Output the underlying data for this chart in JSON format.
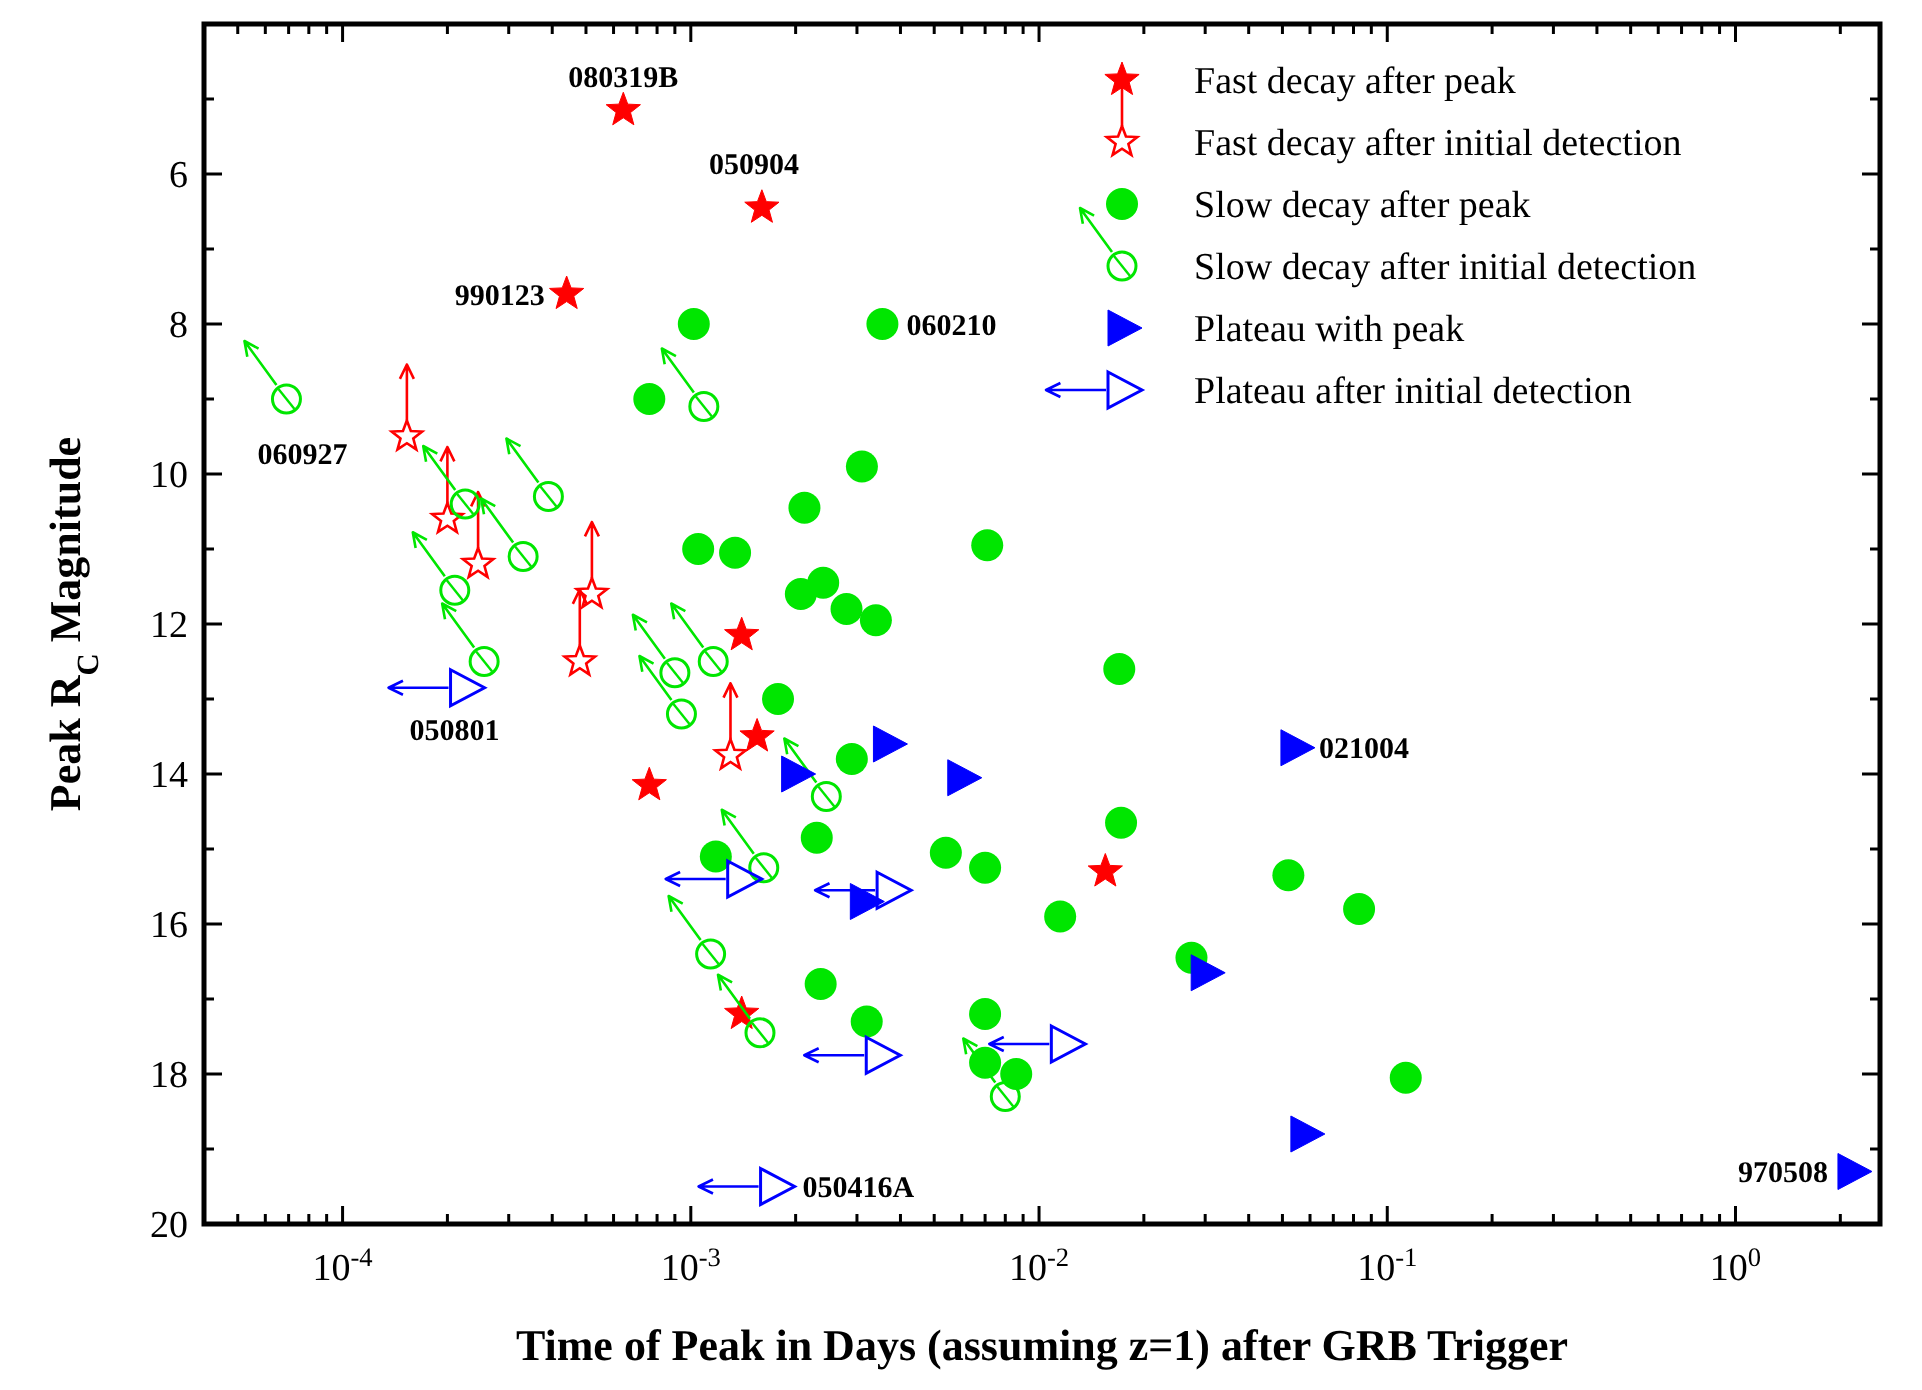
{
  "chart_data": {
    "type": "scatter",
    "xlabel": "Time of Peak in Days (assuming z=1) after GRB Trigger",
    "ylabel": "Peak R$_{C}$ Magnitude",
    "log": "x",
    "legend": "top right",
    "xlim": [
      4e-05,
      2.6
    ],
    "ylim": [
      20,
      4
    ],
    "xticks": [
      {
        "value": 0.0001,
        "label": "10$^{-4}$"
      },
      {
        "value": 0.001,
        "label": "10$^{-3}$"
      },
      {
        "value": 0.01,
        "label": "10$^{-2}$"
      },
      {
        "value": 0.1,
        "label": "10$^{-1}$"
      },
      {
        "value": 1,
        "label": "10$^{0}$"
      },
      {
        "value": 5e-05,
        "label": null
      },
      {
        "value": 6e-05,
        "label": null
      },
      {
        "value": 7e-05,
        "label": null
      },
      {
        "value": 8e-05,
        "label": null
      },
      {
        "value": 9e-05,
        "label": null
      },
      {
        "value": 0.0002,
        "label": null
      },
      {
        "value": 0.0003,
        "label": null
      },
      {
        "value": 0.0004,
        "label": null
      },
      {
        "value": 0.0005,
        "label": null
      },
      {
        "value": 0.0006,
        "label": null
      },
      {
        "value": 0.0007,
        "label": null
      },
      {
        "value": 0.0008,
        "label": null
      },
      {
        "value": 0.0009,
        "label": null
      },
      {
        "value": 0.002,
        "label": null
      },
      {
        "value": 0.003,
        "label": null
      },
      {
        "value": 0.004,
        "label": null
      },
      {
        "value": 0.005,
        "label": null
      },
      {
        "value": 0.006,
        "label": null
      },
      {
        "value": 0.007,
        "label": null
      },
      {
        "value": 0.008,
        "label": null
      },
      {
        "value": 0.009,
        "label": null
      },
      {
        "value": 0.02,
        "label": null
      },
      {
        "value": 0.03,
        "label": null
      },
      {
        "value": 0.04,
        "label": null
      },
      {
        "value": 0.05,
        "label": null
      },
      {
        "value": 0.06,
        "label": null
      },
      {
        "value": 0.07,
        "label": null
      },
      {
        "value": 0.08,
        "label": null
      },
      {
        "value": 0.09,
        "label": null
      },
      {
        "value": 0.2,
        "label": null
      },
      {
        "value": 0.3,
        "label": null
      },
      {
        "value": 0.4,
        "label": null
      },
      {
        "value": 0.5,
        "label": null
      },
      {
        "value": 0.6,
        "label": null
      },
      {
        "value": 0.7,
        "label": null
      },
      {
        "value": 0.8,
        "label": null
      },
      {
        "value": 0.9,
        "label": null
      },
      {
        "value": 2,
        "label": null
      }
    ],
    "yticks": [
      6,
      8,
      10,
      12,
      14,
      16,
      18,
      20,
      {
        "value": 5,
        "label": null
      },
      {
        "value": 7,
        "label": null
      },
      {
        "value": 9,
        "label": null
      },
      {
        "value": 11,
        "label": null
      },
      {
        "value": 13,
        "label": null
      },
      {
        "value": 15,
        "label": null
      },
      {
        "value": 17,
        "label": null
      },
      {
        "value": 19,
        "label": null
      }
    ],
    "series": [
      {
        "name": "Fast decay after peak",
        "color": "#ff0000",
        "marker": "star",
        "x": [
          0.00064,
          0.0016,
          0.00044,
          0.0014,
          0.00155,
          0.00076,
          0.0155,
          0.0014
        ],
        "values": [
          5.15,
          6.45,
          7.6,
          12.15,
          13.5,
          14.15,
          15.3,
          17.2
        ]
      },
      {
        "name": "Fast decay after initial detection",
        "color": "#ff0000",
        "marker": "star",
        "x": [
          0.000153,
          0.0002,
          0.000245,
          0.00052,
          0.00048,
          0.0013
        ],
        "values": [
          9.5,
          10.6,
          11.2,
          11.6,
          12.5,
          13.75
        ]
      },
      {
        "name": "Slow decay after peak",
        "color": "#00e600",
        "marker": "circle",
        "x": [
          0.00102,
          0.00355,
          0.00076,
          0.0031,
          0.00212,
          0.00105,
          0.00134,
          0.0071,
          0.00207,
          0.0024,
          0.0028,
          0.0034,
          0.00178,
          0.0029,
          0.0023,
          0.00118,
          0.0054,
          0.007,
          0.00236,
          0.0032,
          0.007,
          0.007,
          0.0086,
          0.017,
          0.0172,
          0.0115,
          0.052,
          0.083,
          0.0274,
          0.113
        ],
        "values": [
          8.0,
          8.0,
          9.0,
          9.9,
          10.45,
          11.0,
          11.05,
          10.95,
          11.6,
          11.45,
          11.8,
          11.95,
          13.0,
          13.8,
          14.85,
          15.1,
          15.05,
          15.25,
          16.8,
          17.3,
          17.2,
          17.85,
          18.0,
          12.6,
          14.65,
          15.9,
          15.35,
          15.8,
          16.45,
          18.05
        ]
      },
      {
        "name": "Slow decay after initial detection",
        "color": "#00e600",
        "marker": "circle",
        "x": [
          6.9e-05,
          0.00109,
          0.00039,
          0.000225,
          0.00033,
          0.00021,
          0.000255,
          0.0009,
          0.00116,
          0.00094,
          0.00245,
          0.00162,
          0.00114,
          0.00158,
          0.008
        ],
        "values": [
          9.0,
          9.1,
          10.3,
          10.4,
          11.1,
          11.55,
          12.5,
          12.65,
          12.5,
          13.2,
          14.3,
          15.25,
          16.4,
          17.45,
          18.3
        ]
      },
      {
        "name": "Plateau with peak",
        "color": "#0000ff",
        "marker": "triangle",
        "x": [
          0.002,
          0.00367,
          0.006,
          0.00315,
          0.0543,
          0.03,
          0.058,
          2.16
        ],
        "values": [
          14.0,
          13.6,
          14.05,
          15.7,
          13.65,
          16.65,
          18.8,
          19.3
        ]
      },
      {
        "name": "Plateau after initial detection",
        "color": "#0000ff",
        "marker": "triangle",
        "x": [
          0.000224,
          0.0014,
          0.00376,
          0.0035,
          0.00174,
          0.0119
        ],
        "values": [
          12.85,
          15.4,
          15.55,
          17.75,
          19.5,
          17.6
        ]
      }
    ],
    "annotations": [
      {
        "text": "080319B",
        "x": 0.00064,
        "y": 5.15
      },
      {
        "text": "050904",
        "x": 0.0016,
        "y": 6.45
      },
      {
        "text": "990123",
        "x": 0.00044,
        "y": 7.6
      },
      {
        "text": "060927",
        "x": 6.9e-05,
        "y": 9.0
      },
      {
        "text": "060210",
        "x": 0.00355,
        "y": 8.0
      },
      {
        "text": "050801",
        "x": 0.000224,
        "y": 12.85
      },
      {
        "text": "021004",
        "x": 0.0543,
        "y": 13.65
      },
      {
        "text": "050416A",
        "x": 0.00174,
        "y": 19.5
      },
      {
        "text": "970508",
        "x": 2.16,
        "y": 19.3
      }
    ]
  }
}
